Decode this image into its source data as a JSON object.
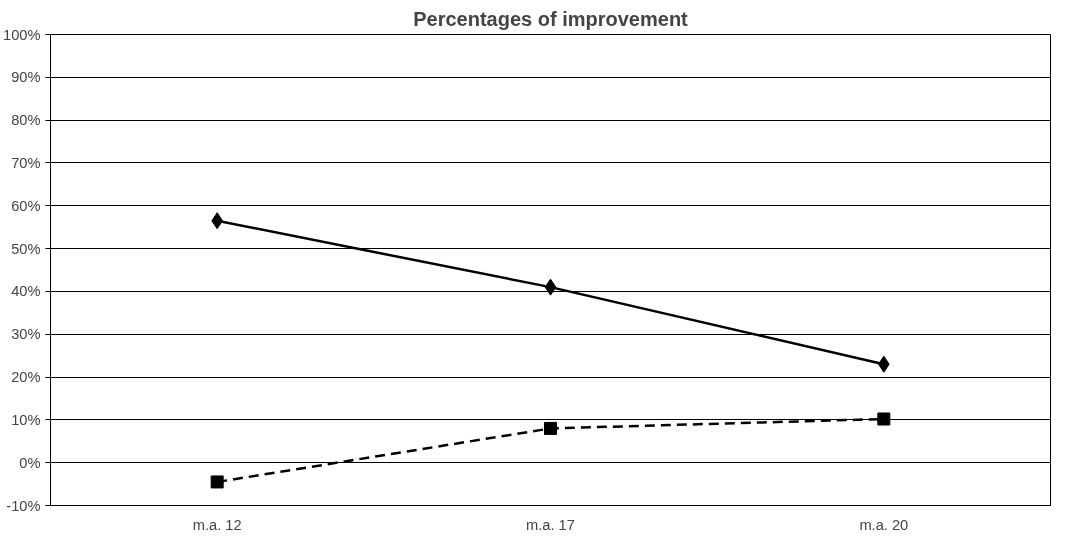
{
  "chart_data": {
    "type": "line",
    "title": "Percentages of improvement",
    "categories": [
      "m.a. 12",
      "m.a. 17",
      "m.a. 20"
    ],
    "series": [
      {
        "color": "#000000",
        "values": [
          56.5,
          41,
          23
        ],
        "marker": "diamond",
        "line_style": "solid"
      },
      {
        "color": "#000000",
        "values": [
          -4.5,
          8,
          10.2
        ],
        "marker": "square",
        "line_style": "dashed"
      }
    ],
    "ylim": [
      -10,
      100
    ],
    "yticks": [
      {
        "value": -10,
        "label": "-10%"
      },
      {
        "value": 0,
        "label": "0%"
      },
      {
        "value": 10,
        "label": "10%"
      },
      {
        "value": 20,
        "label": "20%"
      },
      {
        "value": 30,
        "label": "30%"
      },
      {
        "value": 40,
        "label": "40%"
      },
      {
        "value": 50,
        "label": "50%"
      },
      {
        "value": 60,
        "label": "60%"
      },
      {
        "value": 70,
        "label": "70%"
      },
      {
        "value": 80,
        "label": "80%"
      },
      {
        "value": 90,
        "label": "90%"
      },
      {
        "value": 100,
        "label": "100%"
      }
    ],
    "grid": "y"
  }
}
